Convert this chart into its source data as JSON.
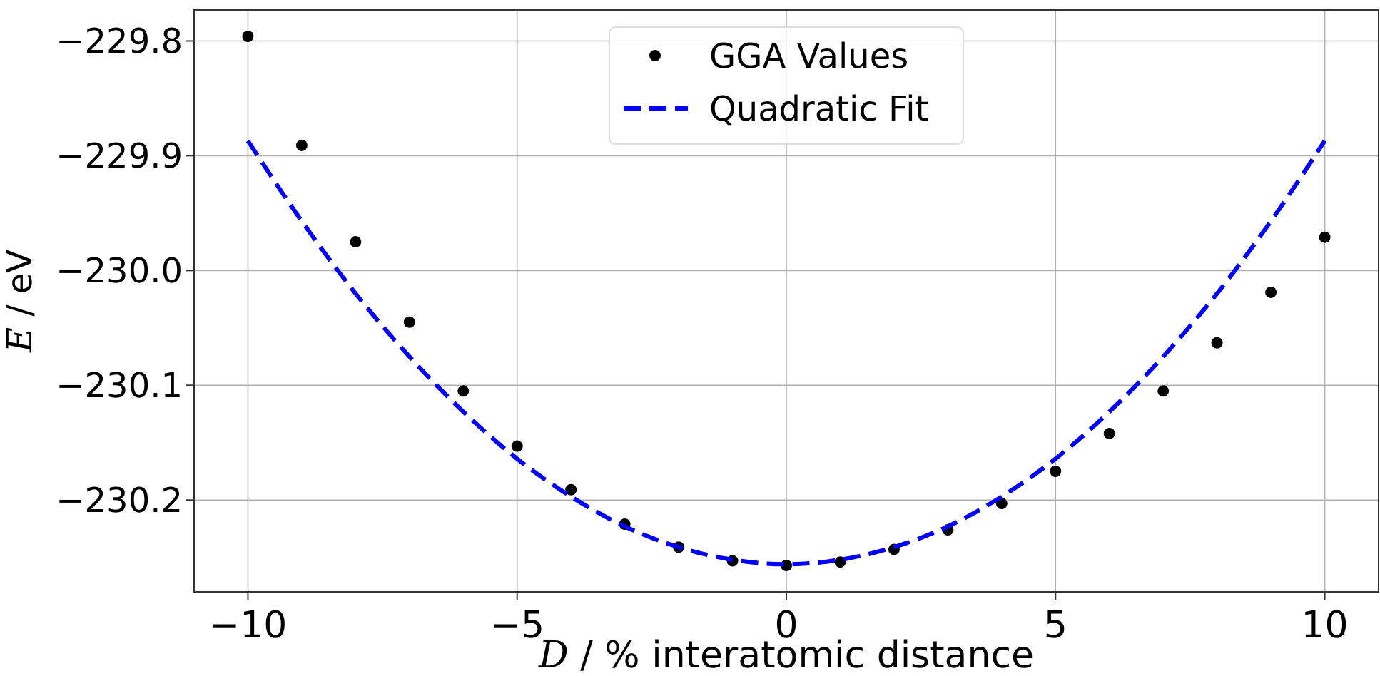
{
  "chart_data": {
    "type": "scatter",
    "xlabel": "D / % interatomic distance",
    "ylabel": "E / eV",
    "xlim": [
      -11,
      11
    ],
    "xticks": [
      -10,
      -5,
      0,
      5,
      10
    ],
    "ylim": [
      -230.28,
      -229.773
    ],
    "yticks": [
      -229.8,
      -229.9,
      {
        "value": -230,
        "label": "−230.0"
      },
      -230.1,
      -230.2
    ],
    "grid": true,
    "legend": "top",
    "marker": "circle",
    "series": [
      {
        "name": "GGA Values",
        "color": "#000000",
        "x": [
          -10,
          -9,
          -8,
          -7,
          -6,
          -5,
          -4,
          -3,
          -2,
          -1,
          0,
          1,
          2,
          3,
          4,
          5,
          6,
          7,
          8,
          9,
          10
        ],
        "values": [
          -229.796,
          -229.891,
          -229.975,
          -230.045,
          -230.105,
          -230.153,
          -230.191,
          -230.221,
          -230.241,
          -230.253,
          -230.257,
          -230.254,
          -230.243,
          -230.226,
          -230.203,
          -230.175,
          -230.142,
          -230.105,
          -230.063,
          -230.019,
          -229.971
        ]
      },
      {
        "name": "Quadratic Fit",
        "type": "line",
        "line_style": "dashed",
        "marker": "none",
        "color": "#0000ff",
        "x": [
          -10,
          -9,
          -8,
          -7,
          -6,
          -5,
          -4,
          -3,
          -2,
          -1,
          0,
          1,
          2,
          3,
          4,
          5,
          6,
          7,
          8,
          9,
          10
        ],
        "values": [
          -229.887,
          -229.957,
          -230.02,
          -230.075,
          -230.123,
          -230.164,
          -230.197,
          -230.223,
          -230.241,
          -230.252,
          -230.256,
          -230.252,
          -230.241,
          -230.223,
          -230.197,
          -230.164,
          -230.123,
          -230.075,
          -230.02,
          -229.957,
          -229.887
        ]
      }
    ]
  }
}
